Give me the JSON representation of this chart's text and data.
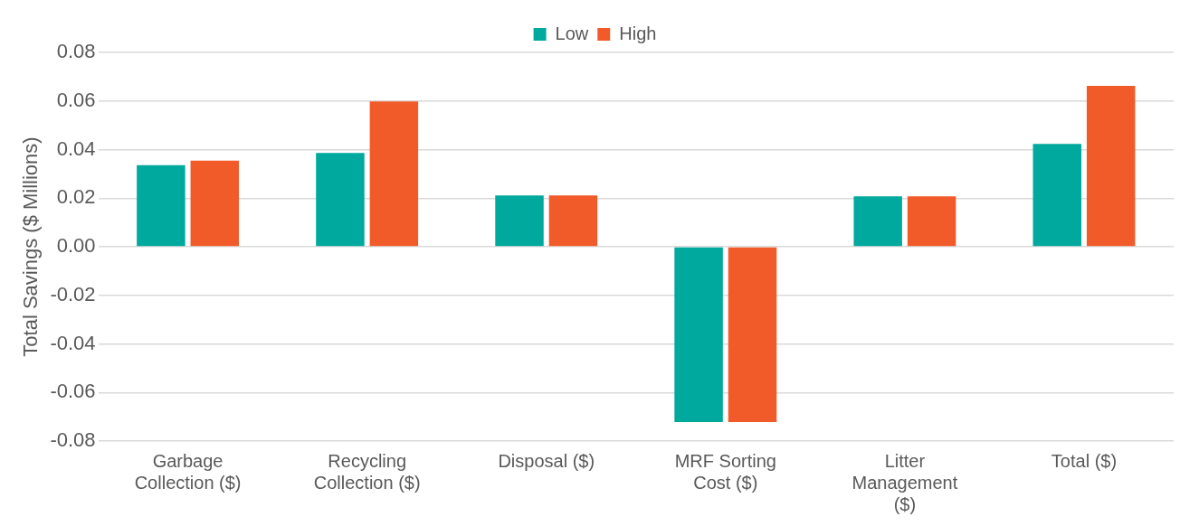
{
  "chart_data": {
    "type": "bar",
    "ylabel": "Total Savings ($ Millions)",
    "categories": [
      "Garbage Collection ($)",
      "Recycling Collection ($)",
      "Disposal ($)",
      "MRF Sorting Cost ($)",
      "Litter Management ($)",
      "Total ($)"
    ],
    "series": [
      {
        "name": "Low",
        "color": "#00a99d",
        "values": [
          0.0336,
          0.0386,
          0.0211,
          -0.0722,
          0.0207,
          0.0423
        ]
      },
      {
        "name": "High",
        "color": "#f15a29",
        "values": [
          0.0354,
          0.0598,
          0.0211,
          -0.0722,
          0.0207,
          0.0662
        ]
      }
    ],
    "ylim": [
      -0.08,
      0.08
    ],
    "yticks": [
      -0.08,
      -0.06,
      -0.04,
      -0.02,
      {
        "value": 0,
        "label": "0.00"
      },
      0.02,
      0.04,
      0.06,
      0.08
    ],
    "grid": "y",
    "legend": "top"
  }
}
